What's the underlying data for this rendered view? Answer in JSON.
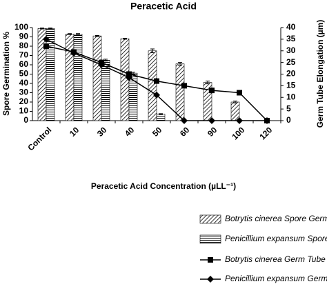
{
  "chart_data": {
    "type": "bar",
    "title": "Peracetic Acid",
    "x_label": "Peracetic Acid Concentration (µLL⁻¹)",
    "y_label": "Spore Germination %",
    "y2_label": "Germ Tube Elongation (µm)",
    "categories": [
      "Control",
      "10",
      "30",
      "40",
      "50",
      "60",
      "90",
      "100",
      "120"
    ],
    "ylim": [
      0,
      100
    ],
    "yticks": [
      0,
      10,
      20,
      30,
      40,
      50,
      60,
      70,
      80,
      90,
      100
    ],
    "y2lim": [
      0,
      40
    ],
    "y2ticks": [
      0,
      5,
      10,
      15,
      20,
      25,
      30,
      35,
      40
    ],
    "legend": "bottom",
    "series": [
      {
        "name": "Botrytis cinerea Spore Germination",
        "kind": "bar",
        "pattern": "diagonal",
        "color": "#000000",
        "values": [
          99,
          93,
          91,
          88,
          75,
          61,
          41,
          20,
          0
        ],
        "errors": [
          0.5,
          0.5,
          0.5,
          0.5,
          2,
          1.5,
          1.5,
          1,
          0
        ]
      },
      {
        "name": "Penicillium expansum Spore Germination",
        "kind": "bar",
        "pattern": "horizontal",
        "color": "#000000",
        "values": [
          99,
          93,
          65,
          51,
          7,
          0,
          0,
          0,
          0
        ],
        "errors": [
          0.5,
          0.5,
          1,
          1,
          0.5,
          0,
          0,
          0,
          0
        ]
      },
      {
        "name": "Botrytis cinerea Germ Tube Elongation",
        "kind": "line",
        "marker": "square",
        "axis": "y2",
        "color": "#000000",
        "values": [
          32,
          29.5,
          25,
          20,
          17,
          15,
          13,
          12,
          0
        ]
      },
      {
        "name": "Penicillium expansum Germ Tube Elongation",
        "kind": "line",
        "marker": "diamond",
        "axis": "y2",
        "color": "#000000",
        "values": [
          35,
          29,
          24,
          18.5,
          11,
          0,
          0,
          0,
          0
        ]
      }
    ]
  }
}
